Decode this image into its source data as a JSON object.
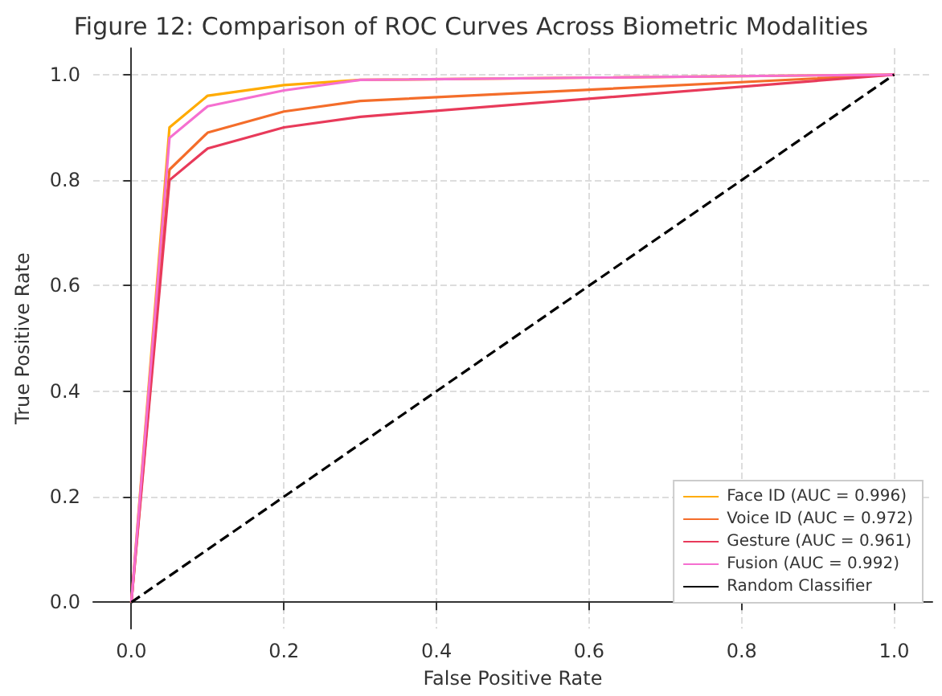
{
  "chart_data": {
    "type": "line",
    "title": "Figure 12: Comparison of ROC Curves Across Biometric Modalities",
    "xlabel": "False Positive Rate",
    "ylabel": "True Positive Rate",
    "series": [
      {
        "name": "Face ID (AUC = 0.996)",
        "color": "#ffab00",
        "x": [
          0,
          0.05,
          0.1,
          0.2,
          0.3,
          1
        ],
        "values": [
          0,
          0.9,
          0.96,
          0.98,
          0.99,
          1
        ]
      },
      {
        "name": "Voice ID (AUC = 0.972)",
        "color": "#f46d2a",
        "x": [
          0,
          0.05,
          0.1,
          0.2,
          0.3,
          1
        ],
        "values": [
          0,
          0.82,
          0.89,
          0.93,
          0.95,
          1
        ]
      },
      {
        "name": "Gesture (AUC = 0.961)",
        "color": "#e83a5a",
        "x": [
          0,
          0.05,
          0.1,
          0.2,
          0.3,
          1
        ],
        "values": [
          0,
          0.8,
          0.86,
          0.9,
          0.92,
          1
        ]
      },
      {
        "name": "Fusion (AUC = 0.992)",
        "color": "#f56fd0",
        "x": [
          0,
          0.05,
          0.1,
          0.2,
          0.3,
          1
        ],
        "values": [
          0,
          0.88,
          0.94,
          0.97,
          0.99,
          1
        ]
      },
      {
        "name": "Random Classifier",
        "color": "#000000",
        "line_style": "dashed",
        "x": [
          0,
          1
        ],
        "values": [
          0,
          1
        ]
      }
    ],
    "xlim": [
      -0.05,
      1.05
    ],
    "ylim": [
      -0.05,
      1.05
    ],
    "xticks": [
      {
        "value": 0,
        "label": "0.0"
      },
      {
        "value": 0.2,
        "label": "0.2"
      },
      {
        "value": 0.4,
        "label": "0.4"
      },
      {
        "value": 0.6,
        "label": "0.6"
      },
      {
        "value": 0.8,
        "label": "0.8"
      },
      {
        "value": 1,
        "label": "1.0"
      }
    ],
    "yticks": [
      {
        "value": 0,
        "label": "0.0"
      },
      {
        "value": 0.2,
        "label": "0.2"
      },
      {
        "value": 0.4,
        "label": "0.4"
      },
      {
        "value": 0.6,
        "label": "0.6"
      },
      {
        "value": 0.8,
        "label": "0.8"
      },
      {
        "value": 1,
        "label": "1.0"
      }
    ],
    "grid": true,
    "legend": "bottom right",
    "marker": "none"
  }
}
